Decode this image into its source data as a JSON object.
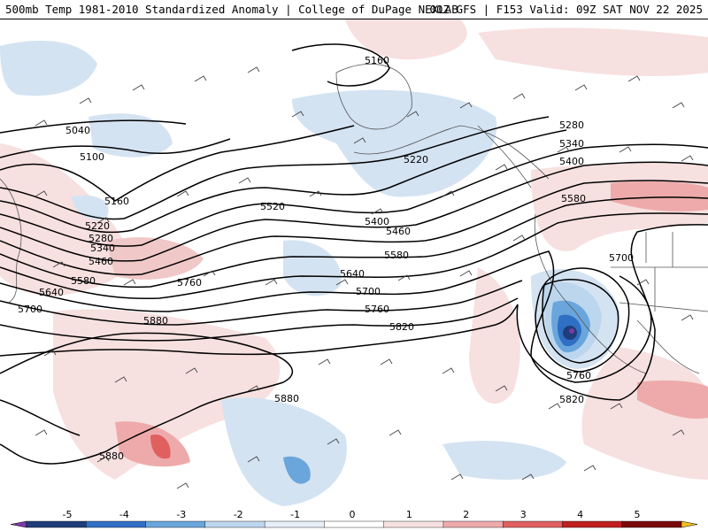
{
  "header": {
    "title": "500mb Temp 1981-2010 Standardized Anomaly | College of DuPage NEXLAB",
    "run_info": "00Z GFS | F153 Valid: 09Z SAT NOV 22 2025"
  },
  "contour_labels": [
    "5040",
    "5100",
    "5160",
    "5160",
    "5220",
    "5220",
    "5280",
    "5280",
    "5340",
    "5340",
    "5400",
    "5400",
    "5460",
    "5460",
    "5520",
    "5580",
    "5580",
    "5580",
    "5640",
    "5640",
    "5700",
    "5700",
    "5700",
    "5760",
    "5760",
    "5760",
    "5820",
    "5820",
    "5880",
    "5880",
    "5880"
  ],
  "colorbar": {
    "ticks": [
      "-5",
      "-4",
      "-3",
      "-2",
      "-1",
      "0",
      "1",
      "2",
      "3",
      "4",
      "5"
    ],
    "colors": [
      "#7b3aa8",
      "#1f3d7a",
      "#2f6fc4",
      "#6aa6dc",
      "#bcd6ee",
      "#e6eef7",
      "#ffffff",
      "#f7e0e0",
      "#eeaaaa",
      "#e06060",
      "#c02020",
      "#7a0a0a",
      "#f0c020"
    ]
  },
  "colors": {
    "contour": "#000000",
    "cold_anomaly": "#bcd6ee",
    "strong_cold": "#2f6fc4",
    "warm_anomaly": "#f7e0e0",
    "strong_warm": "#e06060"
  }
}
